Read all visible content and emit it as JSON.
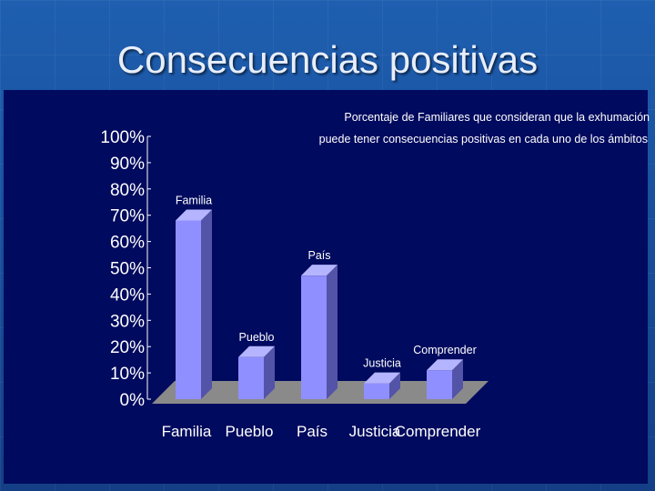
{
  "slide": {
    "title": "Consecuencias positivas"
  },
  "colors": {
    "plot_background": "#000a5e",
    "bar_front": "#8f8fff",
    "bar_side": "#5353a8",
    "bar_top": "#b5b5ff",
    "floor": "#8a8a8a",
    "text": "#ffffff"
  },
  "chart_data": {
    "type": "bar",
    "subtitle_lines": [
      "Porcentaje de Familiares que consideran que la exhumación",
      "puede tener consecuencias positivas en cada uno de los ámbitos"
    ],
    "categories": [
      "Familia",
      "Pueblo",
      "País",
      "Justicia",
      "Comprender"
    ],
    "values": [
      68,
      16,
      47,
      6,
      11
    ],
    "data_labels": [
      "Familia",
      "Pueblo",
      "País",
      "Justicia",
      "Comprender"
    ],
    "ylim": [
      0,
      100
    ],
    "yticks": [
      0,
      10,
      20,
      30,
      40,
      50,
      60,
      70,
      80,
      90,
      100
    ],
    "ytick_labels": [
      "0%",
      "10%",
      "20%",
      "30%",
      "40%",
      "50%",
      "60%",
      "70%",
      "80%",
      "90%",
      "100%"
    ],
    "grid": false,
    "legend": "none",
    "style": "3d"
  }
}
